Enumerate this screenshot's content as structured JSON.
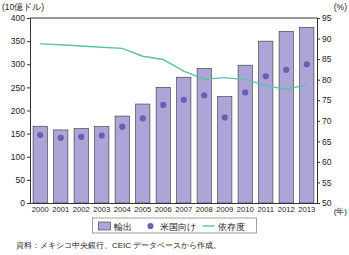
{
  "chart_data": {
    "type": "bar",
    "y_label": "(10億ドル)",
    "y2_label": "(%)",
    "x_label": "(年)",
    "source": "資料：メキシコ中央銀行、CEIC データベースから作成。",
    "categories": [
      "2000",
      "2001",
      "2002",
      "2003",
      "2004",
      "2005",
      "2006",
      "2007",
      "2008",
      "2009",
      "2010",
      "2011",
      "2012",
      "2013"
    ],
    "series": [
      {
        "name": "輸出",
        "type": "bar",
        "color": "#aba5d8",
        "values": [
          166,
          158,
          161,
          165,
          188,
          214,
          250,
          272,
          291,
          230,
          298,
          350,
          371,
          380
        ]
      },
      {
        "name": "米国向け",
        "type": "scatter",
        "marker": "circle",
        "color": "#6a5fb0",
        "values": [
          147,
          141,
          143,
          146,
          165,
          183,
          212,
          223,
          233,
          185,
          239,
          274,
          288,
          300
        ]
      },
      {
        "name": "依存度",
        "type": "line",
        "axis": "y2",
        "line_style": "solid",
        "color": "#5cc3a6",
        "values": [
          88.7,
          88.5,
          88.2,
          87.9,
          87.6,
          85.7,
          84.9,
          82.1,
          80.1,
          80.5,
          80.0,
          78.6,
          77.6,
          78.8
        ]
      }
    ],
    "ylim": [
      0,
      400
    ],
    "yticks": [
      0,
      50,
      100,
      150,
      200,
      250,
      300,
      350,
      400
    ],
    "y2lim": [
      50,
      95
    ],
    "y2ticks": [
      50,
      55,
      60,
      65,
      70,
      75,
      80,
      85,
      90,
      95
    ],
    "grid": false,
    "legend": "bottom"
  }
}
